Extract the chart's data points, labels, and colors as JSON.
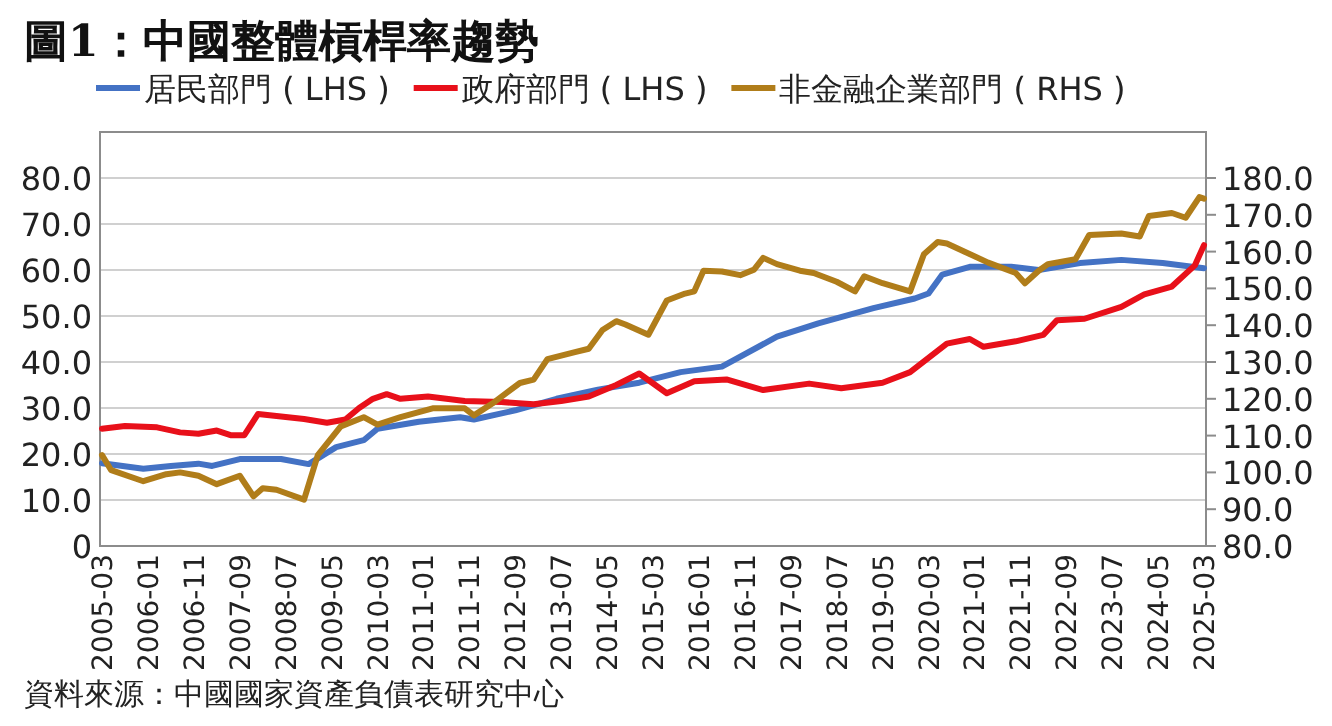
{
  "chart_data": {
    "type": "line",
    "title": "圖1：中國整體槓桿率趨勢",
    "annotations": [
      "資料來源：中國國家資產負債表研究中心"
    ],
    "legend": "top",
    "grid": "y",
    "xlim": [
      "2005-03",
      "2025-03"
    ],
    "xticks": [
      "2005-03",
      "2006-01",
      "2006-11",
      "2007-09",
      "2008-07",
      "2009-05",
      "2010-03",
      "2011-01",
      "2011-11",
      "2012-09",
      "2013-07",
      "2014-05",
      "2015-03",
      "2016-01",
      "2016-11",
      "2017-09",
      "2018-07",
      "2019-05",
      "2020-03",
      "2021-01",
      "2021-11",
      "2022-09",
      "2023-07",
      "2024-05",
      "2025-03"
    ],
    "ylim": [
      0,
      90
    ],
    "yticks": [
      {
        "value": 0,
        "label": "0"
      },
      {
        "value": 10,
        "label": "10.0"
      },
      {
        "value": 20,
        "label": "20.0"
      },
      {
        "value": 30,
        "label": "30.0"
      },
      {
        "value": 40,
        "label": "40.0"
      },
      {
        "value": 50,
        "label": "50.0"
      },
      {
        "value": 60,
        "label": "60.0"
      },
      {
        "value": 70,
        "label": "70.0"
      },
      {
        "value": 80,
        "label": "80.0"
      }
    ],
    "y2lim": [
      80,
      192.5
    ],
    "y2ticks": [
      {
        "value": 80,
        "label": "80.0"
      },
      {
        "value": 90,
        "label": "90.0"
      },
      {
        "value": 100,
        "label": "100.0"
      },
      {
        "value": 110,
        "label": "110.0"
      },
      {
        "value": 120,
        "label": "120.0"
      },
      {
        "value": 130,
        "label": "130.0"
      },
      {
        "value": 140,
        "label": "140.0"
      },
      {
        "value": 150,
        "label": "150.0"
      },
      {
        "value": 160,
        "label": "160.0"
      },
      {
        "value": 170,
        "label": "170.0"
      },
      {
        "value": 180,
        "label": "180.0"
      }
    ],
    "series": [
      {
        "name": "居民部門 ( LHS )",
        "color": "#4472c4",
        "x": [
          "2005-03",
          "2005-12",
          "2006-06",
          "2006-12",
          "2007-03",
          "2007-09",
          "2008-06",
          "2008-12",
          "2009-06",
          "2009-12",
          "2010-03",
          "2010-12",
          "2011-09",
          "2011-12",
          "2012-09",
          "2013-06",
          "2014-03",
          "2014-12",
          "2015-09",
          "2016-06",
          "2017-06",
          "2018-03",
          "2019-03",
          "2019-12",
          "2020-03",
          "2020-06",
          "2020-12",
          "2021-09",
          "2022-03",
          "2022-12",
          "2023-09",
          "2024-06",
          "2025-03"
        ],
        "values": [
          18,
          16.8,
          17.4,
          17.9,
          17.4,
          18.9,
          18.9,
          17.8,
          21.5,
          23,
          25.5,
          27,
          28,
          27.5,
          29.5,
          32,
          34,
          35.5,
          37.8,
          39,
          45.5,
          48.4,
          51.7,
          53.8,
          54.9,
          59,
          60.7,
          60.7,
          60,
          61.5,
          62.2,
          61.5,
          60.4
        ]
      },
      {
        "name": "政府部門 ( LHS )",
        "color": "#e8101a",
        "x": [
          "2005-03",
          "2005-08",
          "2006-03",
          "2006-08",
          "2006-12",
          "2007-04",
          "2007-07",
          "2007-10",
          "2008-01",
          "2008-11",
          "2009-04",
          "2009-08",
          "2009-11",
          "2010-02",
          "2010-05",
          "2010-08",
          "2011-02",
          "2011-10",
          "2012-06",
          "2013-01",
          "2013-07",
          "2014-01",
          "2014-07",
          "2014-12",
          "2015-06",
          "2015-12",
          "2016-07",
          "2017-03",
          "2018-01",
          "2018-08",
          "2019-05",
          "2019-11",
          "2020-07",
          "2020-12",
          "2021-03",
          "2021-10",
          "2022-04",
          "2022-07",
          "2023-01",
          "2023-09",
          "2024-02",
          "2024-08",
          "2025-01",
          "2025-03"
        ],
        "values": [
          25.5,
          26.1,
          25.8,
          24.7,
          24.4,
          25.1,
          24.1,
          24.1,
          28.7,
          27.6,
          26.8,
          27.5,
          30,
          32,
          33,
          32,
          32.5,
          31.5,
          31.3,
          30.8,
          31.5,
          32.5,
          35,
          37.5,
          33.2,
          35.8,
          36.2,
          33.9,
          35.3,
          34.3,
          35.5,
          37.8,
          44,
          45,
          43.3,
          44.5,
          45.9,
          49.1,
          49.4,
          52,
          54.7,
          56.4,
          61,
          65.4
        ]
      },
      {
        "name": "非金融企業部門 ( RHS )",
        "color": "#b07d1a",
        "axis": "y2",
        "x": [
          "2005-03",
          "2005-05",
          "2005-12",
          "2006-05",
          "2006-08",
          "2006-12",
          "2007-04",
          "2007-09",
          "2007-12",
          "2008-02",
          "2008-05",
          "2008-11",
          "2009-02",
          "2009-07",
          "2009-12",
          "2010-03",
          "2010-08",
          "2011-03",
          "2011-10",
          "2011-12",
          "2012-04",
          "2012-10",
          "2013-01",
          "2013-04",
          "2013-10",
          "2014-01",
          "2014-04",
          "2014-07",
          "2014-09",
          "2015-02",
          "2015-06",
          "2015-10",
          "2015-12",
          "2016-02",
          "2016-06",
          "2016-10",
          "2017-01",
          "2017-03",
          "2017-06",
          "2017-11",
          "2018-02",
          "2018-07",
          "2018-11",
          "2019-01",
          "2019-05",
          "2019-11",
          "2020-02",
          "2020-05",
          "2020-07",
          "2021-04",
          "2021-10",
          "2021-12",
          "2022-03",
          "2022-05",
          "2022-11",
          "2023-02",
          "2023-09",
          "2024-01",
          "2024-03",
          "2024-08",
          "2024-11",
          "2025-02",
          "2025-03"
        ],
        "values": [
          104.7,
          100.6,
          97.6,
          99.5,
          100,
          99.1,
          96.8,
          99.1,
          93.5,
          95.7,
          95.3,
          92.6,
          104.7,
          112.5,
          115,
          113,
          115,
          117.4,
          117.4,
          115.5,
          118.7,
          124.3,
          125.2,
          130.8,
          132.7,
          133.6,
          138.7,
          141.1,
          140.2,
          137.4,
          146.7,
          148.6,
          149.2,
          154.8,
          154.6,
          153.6,
          155.1,
          158.3,
          156.6,
          154.8,
          154.2,
          151.8,
          149.2,
          153.3,
          151.4,
          149.2,
          159.3,
          162.6,
          162.2,
          157,
          154.2,
          151.4,
          154.8,
          156.6,
          157.9,
          164.5,
          164.9,
          164.1,
          169.7,
          170.5,
          169.2,
          174.8,
          174.4
        ]
      }
    ]
  }
}
